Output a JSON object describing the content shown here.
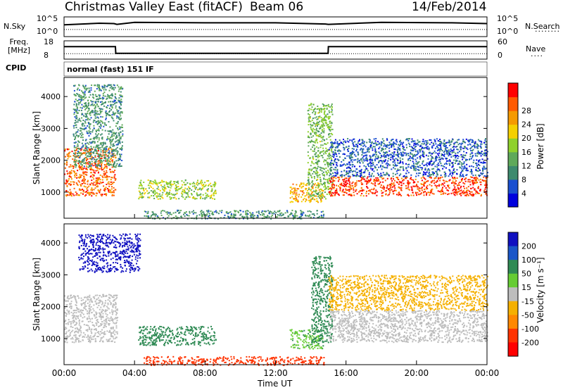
{
  "header": {
    "station": "Christmas Valley East (fitACF)",
    "beam": "Beam 06",
    "date": "14/Feb/2014",
    "mode": "normal (fast) 151 IF",
    "cpid_label": "CPID"
  },
  "colors": {
    "power_scale": [
      "#0000dd",
      "#1a4fd0",
      "#3d8a6e",
      "#5fa95a",
      "#8fd12c",
      "#f5d000",
      "#f59a00",
      "#ff5a00",
      "#ff0000"
    ],
    "velocity_scale": [
      "#1010c0",
      "#1a56c8",
      "#2f8a54",
      "#66cc33",
      "#bdbdbd",
      "#f5b000",
      "#ff8800",
      "#ff3300",
      "#ff0000"
    ]
  },
  "chart_data": [
    {
      "type": "line",
      "panel": "noise",
      "left_label": "N.Sky",
      "right_label": "N.Search",
      "y_ticks_left": [
        "10^5",
        "10^0"
      ],
      "y_ticks_right": [
        "10^5",
        "10^0"
      ],
      "x": [
        "00:00",
        "02:00",
        "02:50",
        "03:00",
        "04:00",
        "08:00",
        "12:00",
        "14:50",
        "15:00",
        "18:00",
        "22:00",
        "24:00"
      ],
      "series": [
        {
          "name": "N.Sky",
          "values": [
            3.0,
            3.4,
            3.3,
            3.1,
            3.6,
            3.5,
            3.5,
            3.2,
            3.1,
            3.6,
            3.5,
            3.3
          ]
        },
        {
          "name": "N.Search",
          "values": [
            1.8,
            1.8,
            1.8,
            1.8,
            1.8,
            1.8,
            1.8,
            1.8,
            1.8,
            1.8,
            1.8,
            1.8
          ]
        }
      ]
    },
    {
      "type": "line",
      "panel": "frequency",
      "left_label": "Freq. [MHz]",
      "right_label": "Nave",
      "y_ticks_left": [
        "18",
        "8"
      ],
      "y_ticks_right": [
        "60",
        "0"
      ],
      "series": [
        {
          "name": "Freq.",
          "x": [
            "00:00",
            "02:55",
            "02:56",
            "14:59",
            "15:00",
            "24:00"
          ],
          "values": [
            15.6,
            15.6,
            10.4,
            10.4,
            15.6,
            15.6
          ]
        },
        {
          "name": "Nave",
          "x": [
            "00:00",
            "24:00"
          ],
          "values": [
            18,
            18
          ]
        }
      ]
    },
    {
      "type": "heatmap",
      "panel": "power",
      "ylabel": "Slant Range [km]",
      "ylim": [
        180,
        4600
      ],
      "y_ticks": [
        "1000",
        "2000",
        "3000",
        "4000"
      ],
      "colorbar_label": "Power [dB]",
      "colorbar_ticks": [
        "4",
        "8",
        "12",
        "16",
        "20",
        "24",
        "28"
      ],
      "colorbar_range": [
        0,
        32
      ],
      "echo_regions": [
        {
          "t0": 0.0,
          "t1": 2.9,
          "r0": 900,
          "r1": 2400,
          "level": 26
        },
        {
          "t0": 0.5,
          "t1": 3.3,
          "r0": 1800,
          "r1": 4400,
          "level": 10
        },
        {
          "t0": 4.2,
          "t1": 8.6,
          "r0": 800,
          "r1": 1400,
          "level": 16
        },
        {
          "t0": 4.5,
          "t1": 14.8,
          "r0": 180,
          "r1": 450,
          "level": 10
        },
        {
          "t0": 12.8,
          "t1": 14.7,
          "r0": 700,
          "r1": 1300,
          "level": 22
        },
        {
          "t0": 13.8,
          "t1": 15.2,
          "r0": 800,
          "r1": 3800,
          "level": 14
        },
        {
          "t0": 15.0,
          "t1": 24.0,
          "r0": 900,
          "r1": 1500,
          "level": 28
        },
        {
          "t0": 15.0,
          "t1": 24.0,
          "r0": 1500,
          "r1": 2700,
          "level": 6
        }
      ]
    },
    {
      "type": "heatmap",
      "panel": "velocity",
      "xlabel": "Time UT",
      "ylabel": "Slant Range [km]",
      "ylim": [
        180,
        4600
      ],
      "y_ticks": [
        "1000",
        "2000",
        "3000",
        "4000"
      ],
      "x_ticks": [
        "00:00",
        "04:00",
        "08:00",
        "12:00",
        "16:00",
        "20:00",
        "00:00"
      ],
      "colorbar_label": "Velocity [m s⁻¹]",
      "colorbar_ticks": [
        "200",
        "100",
        "50",
        "15",
        "-15",
        "-50",
        "-100",
        "-200"
      ],
      "echo_regions": [
        {
          "t0": 0.0,
          "t1": 3.0,
          "r0": 900,
          "r1": 2400,
          "level": 0
        },
        {
          "t0": 0.8,
          "t1": 4.3,
          "r0": 3100,
          "r1": 4300,
          "level": 180
        },
        {
          "t0": 4.2,
          "t1": 8.6,
          "r0": 800,
          "r1": 1400,
          "level": 40
        },
        {
          "t0": 4.5,
          "t1": 14.8,
          "r0": 180,
          "r1": 450,
          "level": -80
        },
        {
          "t0": 12.8,
          "t1": 14.7,
          "r0": 700,
          "r1": 1300,
          "level": 30
        },
        {
          "t0": 14.0,
          "t1": 15.2,
          "r0": 900,
          "r1": 3600,
          "level": 45
        },
        {
          "t0": 15.0,
          "t1": 24.0,
          "r0": 900,
          "r1": 1900,
          "level": 0
        },
        {
          "t0": 15.0,
          "t1": 24.0,
          "r0": 1900,
          "r1": 3000,
          "level": -20
        }
      ]
    }
  ]
}
